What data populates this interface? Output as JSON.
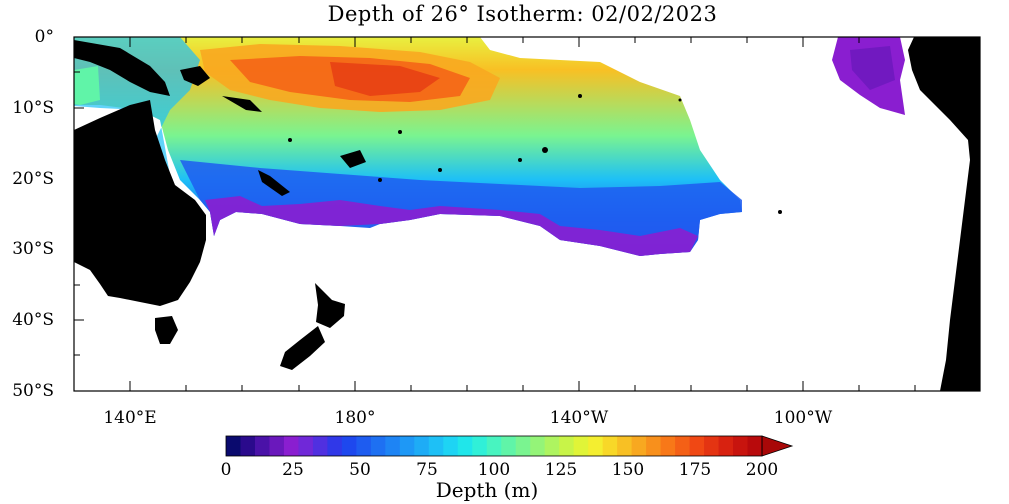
{
  "title": "Depth of 26° Isotherm: 02/02/2023",
  "y_axis": {
    "labels": [
      "0°",
      "10°S",
      "20°S",
      "30°S",
      "40°S",
      "50°S"
    ]
  },
  "x_axis": {
    "labels": [
      "140°E",
      "180°",
      "140°W",
      "100°W"
    ]
  },
  "colorbar": {
    "title": "Depth (m)",
    "tick_labels": [
      "0",
      "25",
      "50",
      "75",
      "100",
      "125",
      "150",
      "175",
      "200"
    ],
    "min": 0,
    "max": 200,
    "step": 5,
    "colors": [
      "#0a0a6e",
      "#2a0a8c",
      "#4a12a8",
      "#6a18bc",
      "#8a1ed0",
      "#7028d8",
      "#5030e0",
      "#3038e8",
      "#1e48ee",
      "#1e5cf0",
      "#1e70f2",
      "#1e84f4",
      "#1e98f6",
      "#1eacf6",
      "#1ec0f6",
      "#1ed4f4",
      "#20e6ea",
      "#30f0d8",
      "#48f4c0",
      "#60f4a8",
      "#7af490",
      "#94f478",
      "#aef460",
      "#c8f448",
      "#e0f438",
      "#f4ee30",
      "#f8d828",
      "#f8c024",
      "#f8a820",
      "#f8901c",
      "#f87818",
      "#f46016",
      "#f04814",
      "#e43412",
      "#d82210",
      "#c8140e",
      "#b80a0c"
    ],
    "over_color": "#a80808"
  },
  "map": {
    "region": "Tropical South Pacific",
    "lon_range": [
      "130°E",
      "80°W"
    ],
    "lat_range": [
      "0°",
      "50°S"
    ],
    "land_color": "#000000",
    "ocean_nodata_color": "#ffffff"
  }
}
